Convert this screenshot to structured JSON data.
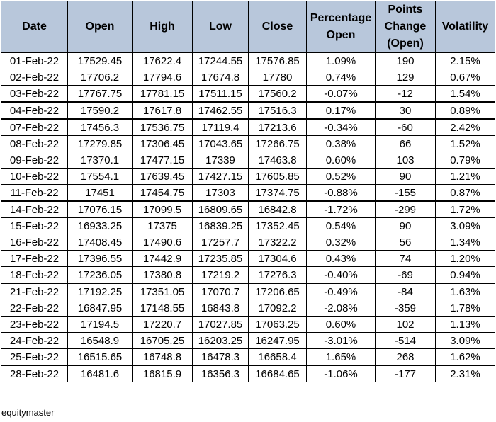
{
  "table": {
    "headers": [
      "Date",
      "Open",
      "High",
      "Low",
      "Close",
      "Percentage Open",
      "Points Change (Open)",
      "Volatility"
    ],
    "rows": [
      [
        "01-Feb-22",
        "17529.45",
        "17622.4",
        "17244.55",
        "17576.85",
        "1.09%",
        "190",
        "2.15%"
      ],
      [
        "02-Feb-22",
        "17706.2",
        "17794.6",
        "17674.8",
        "17780",
        "0.74%",
        "129",
        "0.67%"
      ],
      [
        "03-Feb-22",
        "17767.75",
        "17781.15",
        "17511.15",
        "17560.2",
        "-0.07%",
        "-12",
        "1.54%"
      ],
      [
        "04-Feb-22",
        "17590.2",
        "17617.8",
        "17462.55",
        "17516.3",
        "0.17%",
        "30",
        "0.89%"
      ],
      [
        "07-Feb-22",
        "17456.3",
        "17536.75",
        "17119.4",
        "17213.6",
        "-0.34%",
        "-60",
        "2.42%"
      ],
      [
        "08-Feb-22",
        "17279.85",
        "17306.45",
        "17043.65",
        "17266.75",
        "0.38%",
        "66",
        "1.52%"
      ],
      [
        "09-Feb-22",
        "17370.1",
        "17477.15",
        "17339",
        "17463.8",
        "0.60%",
        "103",
        "0.79%"
      ],
      [
        "10-Feb-22",
        "17554.1",
        "17639.45",
        "17427.15",
        "17605.85",
        "0.52%",
        "90",
        "1.21%"
      ],
      [
        "11-Feb-22",
        "17451",
        "17454.75",
        "17303",
        "17374.75",
        "-0.88%",
        "-155",
        "0.87%"
      ],
      [
        "14-Feb-22",
        "17076.15",
        "17099.5",
        "16809.65",
        "16842.8",
        "-1.72%",
        "-299",
        "1.72%"
      ],
      [
        "15-Feb-22",
        "16933.25",
        "17375",
        "16839.25",
        "17352.45",
        "0.54%",
        "90",
        "3.09%"
      ],
      [
        "16-Feb-22",
        "17408.45",
        "17490.6",
        "17257.7",
        "17322.2",
        "0.32%",
        "56",
        "1.34%"
      ],
      [
        "17-Feb-22",
        "17396.55",
        "17442.9",
        "17235.85",
        "17304.6",
        "0.43%",
        "74",
        "1.20%"
      ],
      [
        "18-Feb-22",
        "17236.05",
        "17380.8",
        "17219.2",
        "17276.3",
        "-0.40%",
        "-69",
        "0.94%"
      ],
      [
        "21-Feb-22",
        "17192.25",
        "17351.05",
        "17070.7",
        "17206.65",
        "-0.49%",
        "-84",
        "1.63%"
      ],
      [
        "22-Feb-22",
        "16847.95",
        "17148.55",
        "16843.8",
        "17092.2",
        "-2.08%",
        "-359",
        "1.78%"
      ],
      [
        "23-Feb-22",
        "17194.5",
        "17220.7",
        "17027.85",
        "17063.25",
        "0.60%",
        "102",
        "1.13%"
      ],
      [
        "24-Feb-22",
        "16548.9",
        "16705.25",
        "16203.25",
        "16247.95",
        "-3.01%",
        "-514",
        "3.09%"
      ],
      [
        "25-Feb-22",
        "16515.65",
        "16748.8",
        "16478.3",
        "16658.4",
        "1.65%",
        "268",
        "1.62%"
      ],
      [
        "28-Feb-22",
        "16481.6",
        "16815.9",
        "16356.3",
        "16684.65",
        "-1.06%",
        "-177",
        "2.31%"
      ]
    ],
    "header_background": "#b8c7db"
  },
  "footer": {
    "source": "equitymaster"
  }
}
